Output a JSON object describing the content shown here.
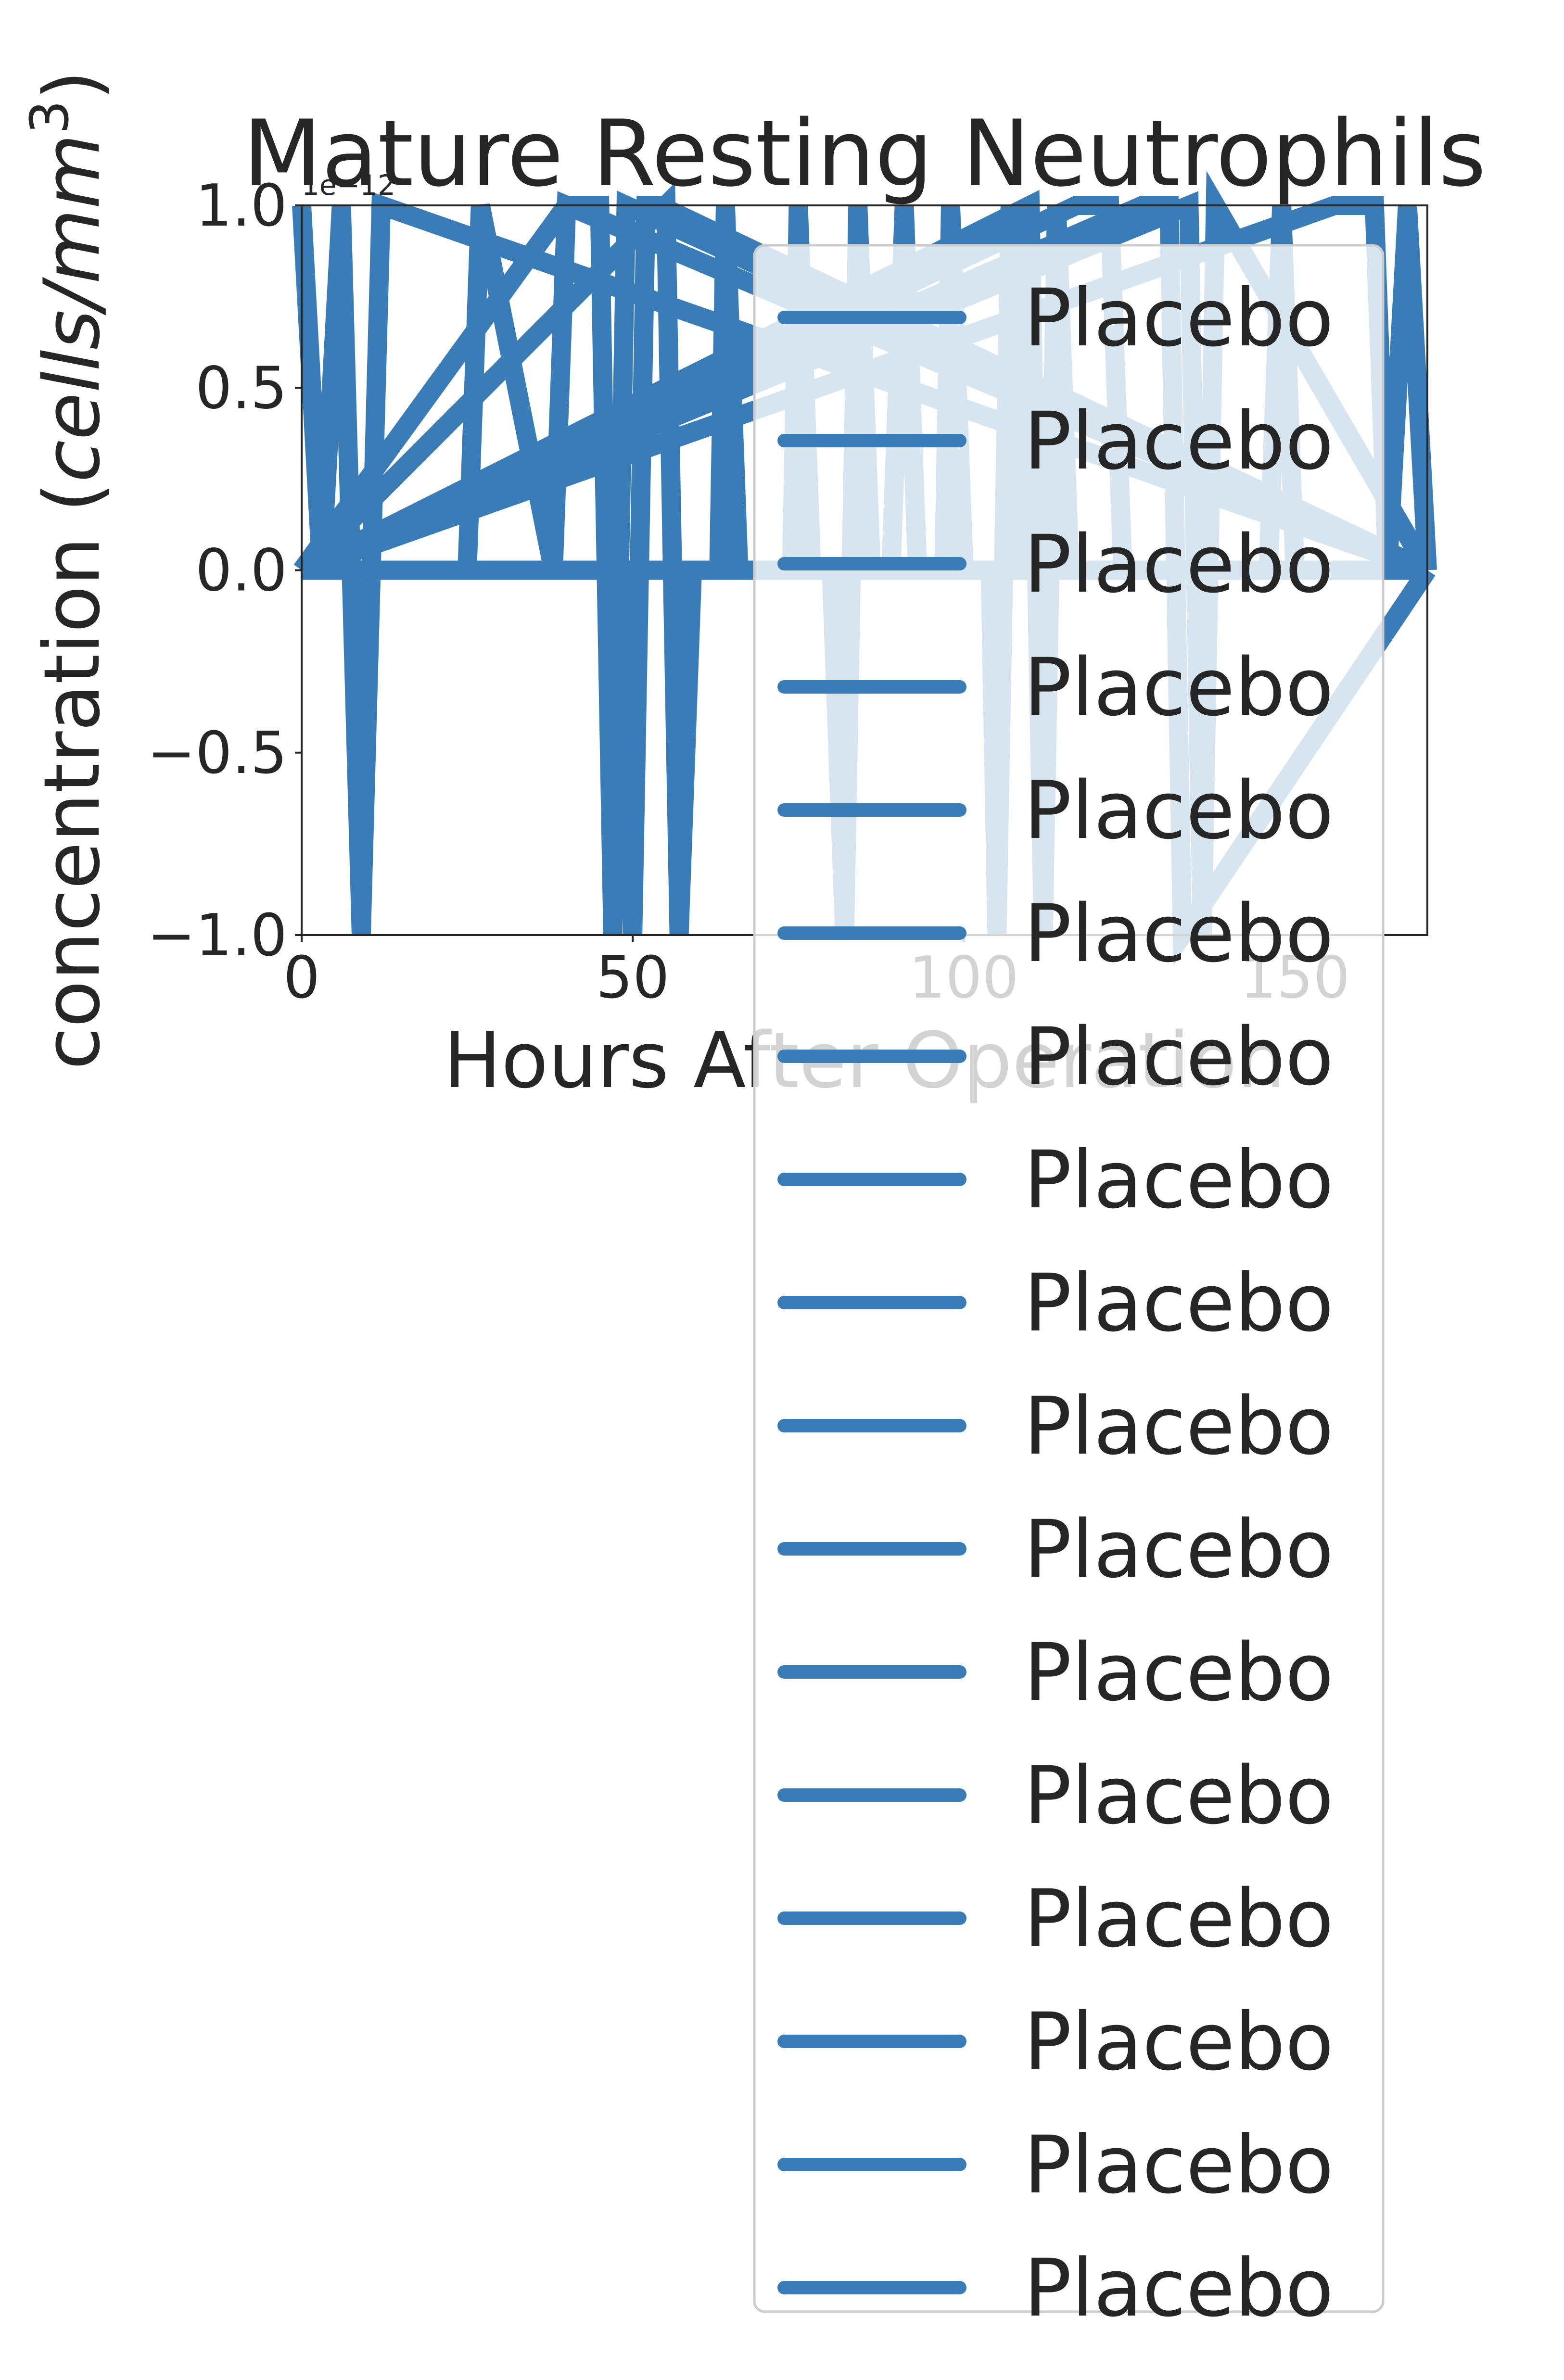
{
  "chart_data": {
    "type": "line",
    "title": "Mature Resting Neutrophils",
    "xlabel": "Hours After Operation",
    "ylabel_main": "concentration (",
    "ylabel_italic": "cells/mm",
    "ylabel_sup": "3",
    "ylabel_close": ")",
    "offset_text": "1e−12",
    "xlim": [
      0,
      170
    ],
    "ylim": [
      -1.0,
      1.0
    ],
    "y_scale_factor": 1e-12,
    "x_ticks": [
      0,
      50,
      100,
      150
    ],
    "x_tick_labels": [
      "0",
      "50",
      "100",
      "150"
    ],
    "y_ticks": [
      -1.0,
      -0.5,
      0.0,
      0.5,
      1.0
    ],
    "y_tick_labels": [
      "−1.0",
      "−0.5",
      "0.0",
      "0.5",
      "1.0"
    ],
    "grid": false,
    "legend_position": "right",
    "series_color": "#3a7cb8",
    "series": [
      {
        "name": "Placebo",
        "x": [
          0,
          3,
          6,
          9,
          12,
          170
        ],
        "y": [
          1.0,
          0.0,
          1.0,
          -1.0,
          1.0,
          0.0
        ]
      },
      {
        "name": "Placebo",
        "x": [
          0,
          25,
          27,
          38,
          40,
          170
        ],
        "y": [
          0.0,
          0.0,
          1.0,
          0.0,
          1.0,
          0.0
        ]
      },
      {
        "name": "Placebo",
        "x": [
          0,
          40,
          45,
          47,
          49,
          170
        ],
        "y": [
          0.0,
          1.0,
          1.0,
          -1.0,
          1.0,
          0.0
        ]
      },
      {
        "name": "Placebo",
        "x": [
          0,
          49,
          50,
          52,
          54,
          170
        ],
        "y": [
          0.0,
          0.0,
          -1.0,
          1.0,
          1.0,
          0.0
        ]
      },
      {
        "name": "Placebo",
        "x": [
          0,
          55,
          57,
          59,
          170
        ],
        "y": [
          0.0,
          1.0,
          -1.0,
          0.0,
          0.0
        ]
      },
      {
        "name": "Placebo",
        "x": [
          0,
          63,
          64,
          66,
          170
        ],
        "y": [
          0.0,
          0.0,
          1.0,
          0.0,
          0.0
        ]
      },
      {
        "name": "Placebo",
        "x": [
          0,
          74,
          75,
          77,
          170
        ],
        "y": [
          0.0,
          0.0,
          1.0,
          0.0,
          0.0
        ]
      },
      {
        "name": "Placebo",
        "x": [
          0,
          80,
          82,
          84,
          86,
          170
        ],
        "y": [
          0.0,
          0.0,
          -1.0,
          1.0,
          0.0,
          0.0
        ]
      },
      {
        "name": "Placebo",
        "x": [
          0,
          89,
          91,
          93,
          170
        ],
        "y": [
          0.0,
          0.0,
          1.0,
          0.0,
          0.0
        ]
      },
      {
        "name": "Placebo",
        "x": [
          0,
          97,
          98,
          100,
          170
        ],
        "y": [
          0.0,
          0.0,
          1.0,
          0.0,
          0.0
        ]
      },
      {
        "name": "Placebo",
        "x": [
          0,
          104,
          105,
          107,
          109,
          170
        ],
        "y": [
          0.0,
          0.0,
          -1.0,
          1.0,
          0.0,
          0.0
        ]
      },
      {
        "name": "Placebo",
        "x": [
          0,
          110,
          112,
          114,
          116,
          170
        ],
        "y": [
          0.0,
          1.0,
          -1.0,
          1.0,
          0.0,
          0.0
        ]
      },
      {
        "name": "Placebo",
        "x": [
          0,
          117,
          122,
          124,
          170
        ],
        "y": [
          0.0,
          1.0,
          1.0,
          0.0,
          0.0
        ]
      },
      {
        "name": "Placebo",
        "x": [
          0,
          127,
          131,
          133,
          170
        ],
        "y": [
          0.0,
          1.0,
          1.0,
          -1.0,
          0.0
        ]
      },
      {
        "name": "Placebo",
        "x": [
          0,
          134,
          136,
          138,
          170
        ],
        "y": [
          0.0,
          1.0,
          -1.0,
          1.0,
          0.0
        ]
      },
      {
        "name": "Placebo",
        "x": [
          0,
          146,
          148,
          150,
          170
        ],
        "y": [
          0.0,
          0.0,
          1.0,
          0.0,
          0.0
        ]
      },
      {
        "name": "Placebo",
        "x": [
          0,
          156,
          162,
          164,
          167,
          170
        ],
        "y": [
          0.0,
          1.0,
          1.0,
          0.0,
          1.0,
          0.0
        ]
      }
    ]
  }
}
